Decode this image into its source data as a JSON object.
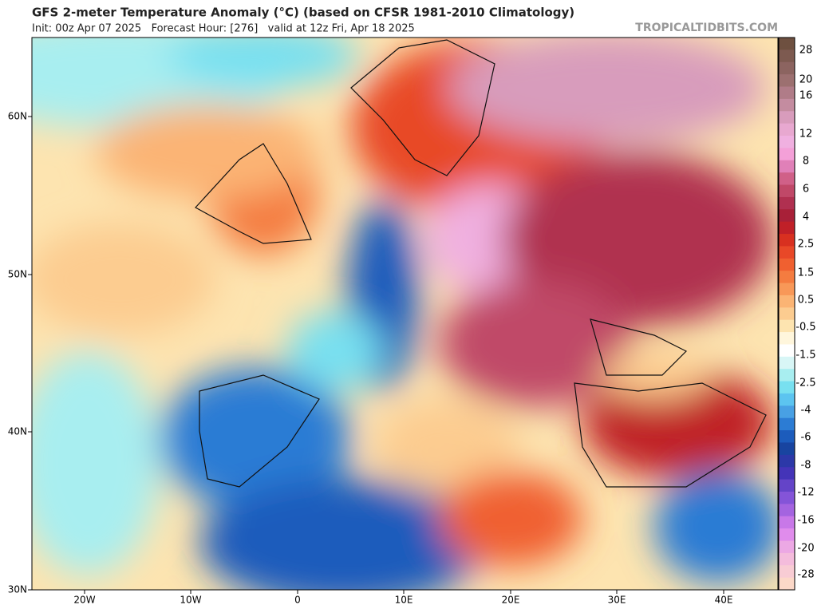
{
  "header": {
    "title": "GFS 2-meter Temperature Anomaly (°C) (based on CFSR 1981-2010 Climatology)",
    "subtitle": "Init: 00z Apr 07 2025   Forecast Hour: [276]   valid at 12z Fri, Apr 18 2025",
    "brand": "TROPICALTIDBITS.COM"
  },
  "map": {
    "lat_labels": [
      "60N",
      "50N",
      "40N",
      "30N"
    ],
    "lon_labels": [
      "20W",
      "10W",
      "0",
      "10E",
      "20E",
      "30E",
      "40E"
    ]
  },
  "colorbar": {
    "labels": [
      "28",
      "20",
      "16",
      "12",
      "8",
      "6",
      "4",
      "2.5",
      "1.5",
      "0.5",
      "-0.5",
      "-1.5",
      "-2.5",
      "-4",
      "-6",
      "-8",
      "-12",
      "-16",
      "-20",
      "-28"
    ],
    "colors": [
      "#6e5040",
      "#7d5a50",
      "#8c6460",
      "#9c7070",
      "#b07c88",
      "#c48ca0",
      "#d89cbc",
      "#e8a8d0",
      "#f0b0e0",
      "#f4a0d8",
      "#e080b8",
      "#d06088",
      "#c04868",
      "#b03050",
      "#a82038",
      "#c02028",
      "#d83020",
      "#e84828",
      "#f06030",
      "#f47c40",
      "#f89858",
      "#fbb474",
      "#fccc90",
      "#fde4b0",
      "#fff6dc",
      "#ffffff",
      "#d8f6f6",
      "#a8eef0",
      "#78e0f0",
      "#5cc4f0",
      "#48a0e4",
      "#2c7cd4",
      "#1c5cbc",
      "#1844a0",
      "#2c38a8",
      "#4434b8",
      "#6444c8",
      "#8454d8",
      "#a464e0",
      "#c878e8",
      "#e08cec",
      "#eca8e4",
      "#f4bcdc",
      "#f8ccd4",
      "#fcd8c8"
    ]
  }
}
